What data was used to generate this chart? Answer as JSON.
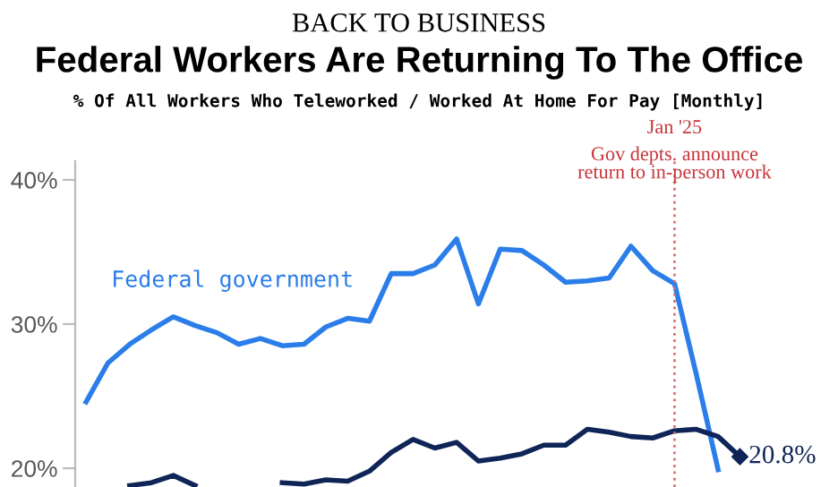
{
  "chart_data": {
    "type": "line",
    "title": "Federal Workers Are Returning To The Office",
    "subtitle": "% Of All Workers Who Teleworked / Worked At Home For Pay [Monthly]",
    "annotations": [
      "BACK TO BUSINESS"
    ],
    "categories": [
      null,
      null,
      null,
      null,
      null,
      null,
      null,
      null,
      null,
      null,
      null,
      null,
      null,
      null,
      null,
      null,
      null,
      null,
      null,
      null,
      null,
      null,
      null,
      null,
      null,
      null,
      null,
      "Jan '25",
      null,
      null,
      null
    ],
    "series": [
      {
        "name": "Federal government",
        "color": "#2b7de9",
        "values": [
          24.6,
          27.3,
          28.6,
          29.6,
          30.5,
          29.9,
          29.4,
          28.6,
          29.0,
          28.5,
          28.6,
          29.8,
          30.4,
          30.2,
          33.5,
          33.5,
          34.1,
          35.9,
          31.4,
          35.2,
          35.1,
          34.1,
          32.9,
          33.0,
          33.2,
          35.4,
          33.7,
          32.8,
          26.5,
          19.9,
          null
        ]
      },
      {
        "color": "#0f2557",
        "values": [
          null,
          null,
          18.8,
          19.0,
          19.5,
          18.8,
          null,
          null,
          null,
          19.0,
          18.9,
          19.2,
          19.1,
          19.8,
          21.1,
          22.0,
          21.4,
          21.8,
          20.5,
          20.7,
          21.0,
          21.6,
          21.6,
          22.7,
          22.5,
          22.2,
          22.1,
          22.6,
          22.7,
          22.2,
          20.8
        ],
        "value_labels": [
          null,
          null,
          null,
          null,
          null,
          null,
          null,
          null,
          null,
          null,
          null,
          null,
          null,
          null,
          null,
          null,
          null,
          null,
          null,
          null,
          null,
          null,
          null,
          null,
          null,
          null,
          null,
          null,
          null,
          null,
          "20.8%"
        ]
      }
    ],
    "ylim": [
      18.7,
      41.3
    ],
    "yticks": [
      {
        "value": 20,
        "label": "20%"
      },
      {
        "value": 30,
        "label": "30%"
      },
      {
        "value": 40,
        "label": "40%"
      }
    ],
    "marker": "none",
    "line_style": "solid",
    "ref_lines": [
      {
        "axis": "x",
        "value": "Jan '25",
        "label": "Gov depts. announce\nreturn to in-person work",
        "color": "#e36b6b",
        "line_style": "dotted"
      }
    ]
  }
}
